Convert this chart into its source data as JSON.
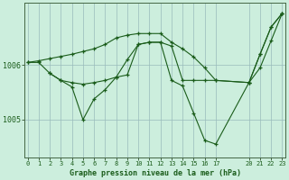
{
  "title": "Graphe pression niveau de la mer (hPa)",
  "background_color": "#cceedd",
  "plot_bg_color": "#cceedd",
  "grid_color": "#99bbbb",
  "line_color": "#1a5c1a",
  "marker_color": "#1a5c1a",
  "x_ticks": [
    0,
    1,
    2,
    3,
    4,
    5,
    6,
    7,
    8,
    9,
    10,
    11,
    12,
    13,
    14,
    15,
    16,
    17,
    20,
    21,
    22,
    23
  ],
  "xlim": [
    -0.3,
    23.3
  ],
  "ylim": [
    1004.3,
    1007.15
  ],
  "y_ticks": [
    1005,
    1006
  ],
  "series1": [
    [
      0,
      1006.05
    ],
    [
      1,
      1006.05
    ],
    [
      2,
      1005.85
    ],
    [
      3,
      1005.72
    ],
    [
      4,
      1005.68
    ],
    [
      5,
      1005.65
    ],
    [
      6,
      1005.68
    ],
    [
      7,
      1005.72
    ],
    [
      8,
      1005.78
    ],
    [
      9,
      1005.82
    ],
    [
      10,
      1006.38
    ],
    [
      11,
      1006.42
    ],
    [
      12,
      1006.42
    ],
    [
      13,
      1006.35
    ],
    [
      14,
      1005.72
    ],
    [
      15,
      1005.72
    ],
    [
      16,
      1005.72
    ],
    [
      17,
      1005.72
    ],
    [
      20,
      1005.68
    ],
    [
      21,
      1005.95
    ],
    [
      22,
      1006.45
    ],
    [
      23,
      1006.95
    ]
  ],
  "series2": [
    [
      0,
      1006.05
    ],
    [
      1,
      1006.08
    ],
    [
      2,
      1006.12
    ],
    [
      3,
      1006.16
    ],
    [
      4,
      1006.2
    ],
    [
      5,
      1006.25
    ],
    [
      6,
      1006.3
    ],
    [
      7,
      1006.38
    ],
    [
      8,
      1006.5
    ],
    [
      9,
      1006.55
    ],
    [
      10,
      1006.58
    ],
    [
      11,
      1006.58
    ],
    [
      12,
      1006.58
    ],
    [
      13,
      1006.42
    ],
    [
      14,
      1006.3
    ],
    [
      15,
      1006.15
    ],
    [
      16,
      1005.95
    ],
    [
      17,
      1005.72
    ],
    [
      20,
      1005.68
    ],
    [
      21,
      1006.2
    ],
    [
      22,
      1006.7
    ],
    [
      23,
      1006.95
    ]
  ],
  "series3": [
    [
      2,
      1005.85
    ],
    [
      3,
      1005.72
    ],
    [
      4,
      1005.6
    ],
    [
      5,
      1005.0
    ],
    [
      6,
      1005.38
    ],
    [
      7,
      1005.55
    ],
    [
      8,
      1005.78
    ],
    [
      9,
      1006.1
    ],
    [
      10,
      1006.38
    ],
    [
      11,
      1006.42
    ],
    [
      12,
      1006.42
    ],
    [
      13,
      1005.72
    ],
    [
      14,
      1005.62
    ],
    [
      15,
      1005.12
    ],
    [
      16,
      1004.62
    ],
    [
      17,
      1004.55
    ],
    [
      20,
      1005.68
    ],
    [
      21,
      1006.2
    ],
    [
      22,
      1006.7
    ],
    [
      23,
      1006.95
    ]
  ]
}
